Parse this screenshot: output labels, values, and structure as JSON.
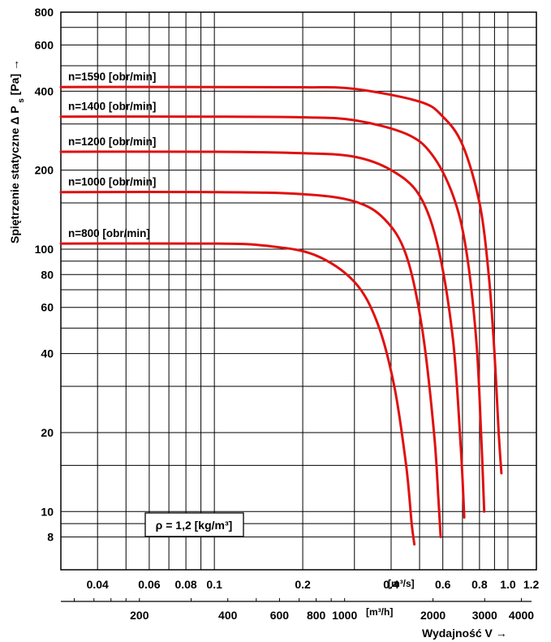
{
  "chart_data": {
    "type": "line",
    "scale": "log-log",
    "grid": true,
    "series_color": "#e01010",
    "ylabel": "Spiętrzenie statyczne Δ P",
    "ylabel_subscript": "s",
    "ylabel_unit": "[Pa]",
    "ylabel_arrow": "→",
    "xlabel": "Wydajność V →",
    "x_unit_top": "[m³/s]",
    "x_unit_bottom": "[m³/h]",
    "density_note": "ρ = 1,2 [kg/m³]",
    "xlim_m3s": [
      0.03,
      1.25
    ],
    "ylim_pa": [
      6,
      800
    ],
    "y_ticks": [
      {
        "value": 800,
        "label": "800"
      },
      {
        "value": 600,
        "label": "600"
      },
      {
        "value": 400,
        "label": "400"
      },
      {
        "value": 200,
        "label": "200"
      },
      {
        "value": 100,
        "label": "100"
      },
      {
        "value": 80,
        "label": "80"
      },
      {
        "value": 60,
        "label": "60"
      },
      {
        "value": 40,
        "label": "40"
      },
      {
        "value": 20,
        "label": "20"
      },
      {
        "value": 10,
        "label": "10"
      },
      {
        "value": 8,
        "label": "8"
      }
    ],
    "x_ticks_m3s": [
      {
        "value": 0.04,
        "label": "0.04"
      },
      {
        "value": 0.06,
        "label": "0.06"
      },
      {
        "value": 0.08,
        "label": "0.08"
      },
      {
        "value": 0.1,
        "label": "0.1"
      },
      {
        "value": 0.2,
        "label": "0.2"
      },
      {
        "value": 0.4,
        "label": "0.4"
      },
      {
        "value": 0.6,
        "label": "0.6"
      },
      {
        "value": 0.8,
        "label": "0.8"
      },
      {
        "value": 1.0,
        "label": "1.0"
      },
      {
        "value": 1.2,
        "label": "1.2"
      }
    ],
    "x_ticks_m3h": [
      {
        "value": 200,
        "label": "200"
      },
      {
        "value": 400,
        "label": "400"
      },
      {
        "value": 600,
        "label": "600"
      },
      {
        "value": 800,
        "label": "800"
      },
      {
        "value": 1000,
        "label": "1000"
      },
      {
        "value": 2000,
        "label": "2000"
      },
      {
        "value": 3000,
        "label": "3000"
      },
      {
        "value": 4000,
        "label": "4000"
      }
    ],
    "series": [
      {
        "name": "n=1590 [obr/min]",
        "x_m3s": [
          0.03,
          0.1,
          0.2,
          0.3,
          0.5,
          0.6,
          0.7,
          0.8,
          0.86,
          0.9,
          0.93,
          0.95
        ],
        "y_pa": [
          415,
          415,
          414,
          408,
          365,
          320,
          250,
          150,
          80,
          40,
          20,
          14
        ]
      },
      {
        "name": "n=1400 [obr/min]",
        "x_m3s": [
          0.03,
          0.1,
          0.2,
          0.3,
          0.45,
          0.55,
          0.65,
          0.72,
          0.78,
          0.81,
          0.83
        ],
        "y_pa": [
          320,
          320,
          318,
          310,
          275,
          230,
          160,
          100,
          45,
          20,
          10
        ]
      },
      {
        "name": "n=1200 [obr/min]",
        "x_m3s": [
          0.03,
          0.1,
          0.2,
          0.3,
          0.4,
          0.5,
          0.58,
          0.65,
          0.69,
          0.71
        ],
        "y_pa": [
          235,
          235,
          232,
          225,
          200,
          160,
          100,
          45,
          18,
          9.5
        ]
      },
      {
        "name": "n=1000 [obr/min]",
        "x_m3s": [
          0.03,
          0.1,
          0.2,
          0.3,
          0.38,
          0.45,
          0.51,
          0.56,
          0.58,
          0.59
        ],
        "y_pa": [
          165,
          165,
          162,
          152,
          130,
          95,
          50,
          20,
          11,
          8
        ]
      },
      {
        "name": "n=800 [obr/min]",
        "x_m3s": [
          0.03,
          0.1,
          0.15,
          0.22,
          0.3,
          0.36,
          0.41,
          0.45,
          0.47,
          0.48
        ],
        "y_pa": [
          105,
          105,
          103,
          95,
          75,
          52,
          30,
          15,
          9,
          7.5
        ]
      }
    ]
  }
}
